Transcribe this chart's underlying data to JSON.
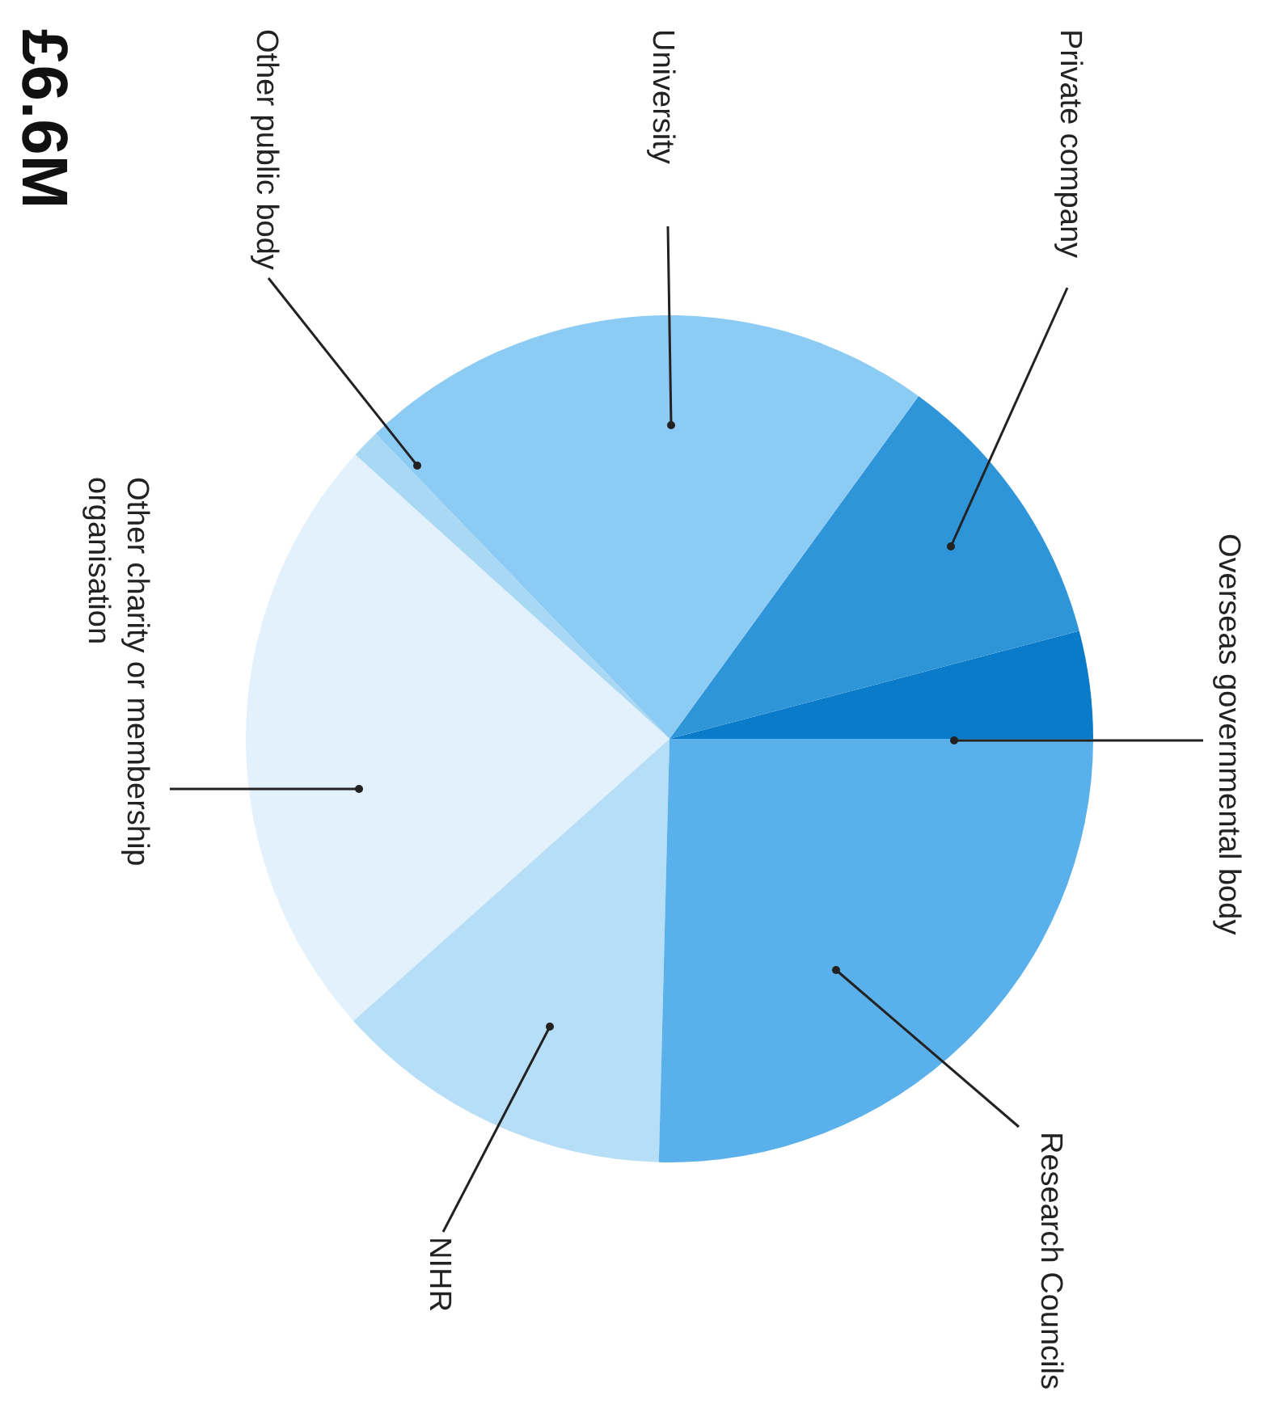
{
  "chart_data": {
    "type": "pie",
    "title": "£6.6M",
    "categories": [
      "Overseas governmental body",
      "Private company",
      "University",
      "Other public body",
      "Other charity or membership organisation",
      "NIHR",
      "Research Councils"
    ],
    "values": [
      4.1,
      10.9,
      22.2,
      1.1,
      23.3,
      13.0,
      25.4
    ],
    "colors": [
      "#0a7bc8",
      "#2e95d8",
      "#8ccbf3",
      "#a9d8f5",
      "#e2f1fb",
      "#b7def7",
      "#5ab0ea"
    ]
  }
}
